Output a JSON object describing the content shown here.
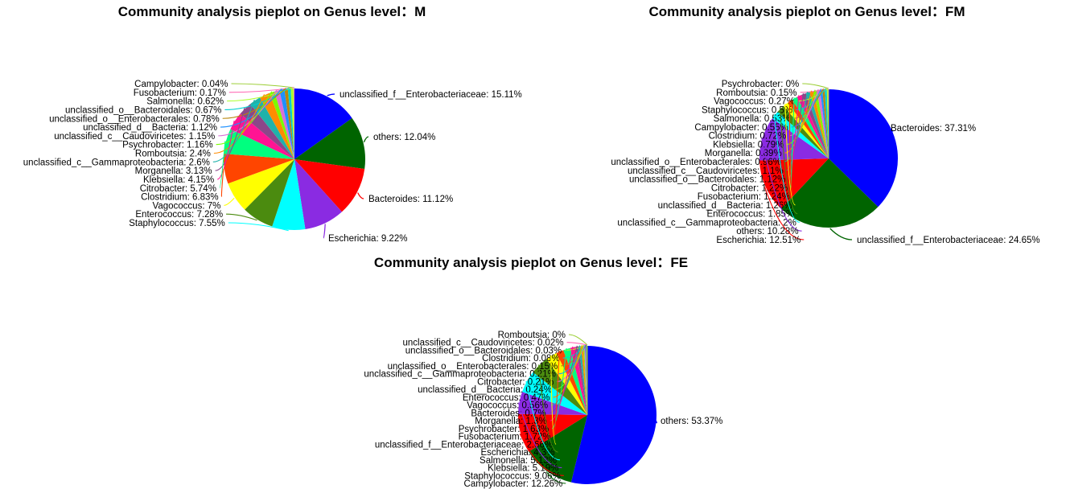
{
  "palette": [
    "#0000FF",
    "#006400",
    "#FF0000",
    "#8A2BE2",
    "#00FFFF",
    "#4B8B0F",
    "#FFFF00",
    "#FF4500",
    "#00FF7F",
    "#FF1493",
    "#8B4789",
    "#20B2AA",
    "#FF8C00",
    "#7CFC00",
    "#DA70D6",
    "#1E90FF",
    "#B8860B",
    "#00CED1",
    "#ADFF2F",
    "#FF69B4",
    "#9ACD32",
    "#40E0D0",
    "#D2691E",
    "#BA55D3"
  ],
  "chart_data": [
    {
      "type": "pie",
      "title": "Community analysis pieplot on Genus level：M",
      "slices": [
        {
          "label": "unclassified_f__Enterobacteriaceae",
          "value": 15.11,
          "text": "unclassified_f__Enterobacteriaceae: 15.11%"
        },
        {
          "label": "others",
          "value": 12.04,
          "text": "others: 12.04%"
        },
        {
          "label": "Bacteroides",
          "value": 11.12,
          "text": "Bacteroides: 11.12%"
        },
        {
          "label": "Escherichia",
          "value": 9.22,
          "text": "Escherichia: 9.22%"
        },
        {
          "label": "Staphylococcus",
          "value": 7.55,
          "text": "Staphylococcus: 7.55%"
        },
        {
          "label": "Enterococcus",
          "value": 7.28,
          "text": "Enterococcus: 7.28%"
        },
        {
          "label": "Vagococcus",
          "value": 7,
          "text": "Vagococcus: 7%"
        },
        {
          "label": "Clostridium",
          "value": 6.83,
          "text": "Clostridium: 6.83%"
        },
        {
          "label": "Citrobacter",
          "value": 5.74,
          "text": "Citrobacter: 5.74%"
        },
        {
          "label": "Klebsiella",
          "value": 4.15,
          "text": "Klebsiella: 4.15%"
        },
        {
          "label": "Morganella",
          "value": 3.13,
          "text": "Morganella: 3.13%"
        },
        {
          "label": "unclassified_c__Gammaproteobacteria",
          "value": 2.6,
          "text": "unclassified_c__Gammaproteobacteria: 2.6%"
        },
        {
          "label": "Romboutsia",
          "value": 2.4,
          "text": "Romboutsia: 2.4%"
        },
        {
          "label": "Psychrobacter",
          "value": 1.16,
          "text": "Psychrobacter: 1.16%"
        },
        {
          "label": "unclassified_c__Caudoviricetes",
          "value": 1.15,
          "text": "unclassified_c__Caudoviricetes: 1.15%"
        },
        {
          "label": "unclassified_d__Bacteria",
          "value": 1.12,
          "text": "unclassified_d__Bacteria: 1.12%"
        },
        {
          "label": "unclassified_o__Enterobacterales",
          "value": 0.78,
          "text": "unclassified_o__Enterobacterales: 0.78%"
        },
        {
          "label": "unclassified_o__Bacteroidales",
          "value": 0.67,
          "text": "unclassified_o__Bacteroidales: 0.67%"
        },
        {
          "label": "Salmonella",
          "value": 0.62,
          "text": "Salmonella: 0.62%"
        },
        {
          "label": "Fusobacterium",
          "value": 0.17,
          "text": "Fusobacterium: 0.17%"
        },
        {
          "label": "Campylobacter",
          "value": 0.04,
          "text": "Campylobacter: 0.04%"
        }
      ]
    },
    {
      "type": "pie",
      "title": "Community analysis pieplot on Genus level：FM",
      "slices": [
        {
          "label": "Bacteroides",
          "value": 37.31,
          "text": "Bacteroides: 37.31%"
        },
        {
          "label": "unclassified_f__Enterobacteriaceae",
          "value": 24.65,
          "text": "unclassified_f__Enterobacteriaceae: 24.65%"
        },
        {
          "label": "Escherichia",
          "value": 12.51,
          "text": "Escherichia: 12.51%"
        },
        {
          "label": "others",
          "value": 10.28,
          "text": "others: 10.28%"
        },
        {
          "label": "unclassified_c__Gammaproteobacteria",
          "value": 2,
          "text": "unclassified_c__Gammaproteobacteria: 2%"
        },
        {
          "label": "Enterococcus",
          "value": 1.85,
          "text": "Enterococcus: 1.85%"
        },
        {
          "label": "unclassified_d__Bacteria",
          "value": 1.26,
          "text": "unclassified_d__Bacteria: 1.26%"
        },
        {
          "label": "Fusobacterium",
          "value": 1.24,
          "text": "Fusobacterium: 1.24%"
        },
        {
          "label": "Citrobacter",
          "value": 1.22,
          "text": "Citrobacter: 1.22%"
        },
        {
          "label": "unclassified_o__Bacteroidales",
          "value": 1.12,
          "text": "unclassified_o__Bacteroidales: 1.12%"
        },
        {
          "label": "unclassified_c__Caudoviricetes",
          "value": 1.1,
          "text": "unclassified_c__Caudoviricetes: 1.1%"
        },
        {
          "label": "unclassified_o__Enterobacterales",
          "value": 0.96,
          "text": "unclassified_o__Enterobacterales: 0.96%"
        },
        {
          "label": "Morganella",
          "value": 0.89,
          "text": "Morganella: 0.89%"
        },
        {
          "label": "Klebsiella",
          "value": 0.79,
          "text": "Klebsiella: 0.79%"
        },
        {
          "label": "Clostridium",
          "value": 0.72,
          "text": "Clostridium: 0.72%"
        },
        {
          "label": "Campylobacter",
          "value": 0.55,
          "text": "Campylobacter: 0.55%"
        },
        {
          "label": "Salmonella",
          "value": 0.53,
          "text": "Salmonella: 0.53%"
        },
        {
          "label": "Staphylococcus",
          "value": 0.5,
          "text": "Staphylococcus: 0.5%"
        },
        {
          "label": "Vagococcus",
          "value": 0.27,
          "text": "Vagococcus: 0.27%"
        },
        {
          "label": "Romboutsia",
          "value": 0.15,
          "text": "Romboutsia: 0.15%"
        },
        {
          "label": "Psychrobacter",
          "value": 0,
          "text": "Psychrobacter: 0%"
        }
      ]
    },
    {
      "type": "pie",
      "title": "Community analysis pieplot on Genus level：FE",
      "slices": [
        {
          "label": "others",
          "value": 53.37,
          "text": "others: 53.37%"
        },
        {
          "label": "Campylobacter",
          "value": 12.26,
          "text": "Campylobacter: 12.26%"
        },
        {
          "label": "Staphylococcus",
          "value": 9.06,
          "text": "Staphylococcus: 9.06%"
        },
        {
          "label": "Klebsiella",
          "value": 5.19,
          "text": "Klebsiella: 5.19%"
        },
        {
          "label": "Salmonella",
          "value": 5.13,
          "text": "Salmonella: 5.13%"
        },
        {
          "label": "Escherichia",
          "value": 4.3,
          "text": "Escherichia: 4.3%"
        },
        {
          "label": "unclassified_f__Enterobacteriaceae",
          "value": 2.66,
          "text": "unclassified_f__Enterobacteriaceae: 2.66%"
        },
        {
          "label": "Fusobacterium",
          "value": 1.72,
          "text": "Fusobacterium: 1.72%"
        },
        {
          "label": "Psychrobacter",
          "value": 1.63,
          "text": "Psychrobacter: 1.63%"
        },
        {
          "label": "Morganella",
          "value": 1.3,
          "text": "Morganella: 1.3%"
        },
        {
          "label": "Bacteroides",
          "value": 0.7,
          "text": "Bacteroides: 0.7%"
        },
        {
          "label": "Vagococcus",
          "value": 0.56,
          "text": "Vagococcus: 0.56%"
        },
        {
          "label": "Enterococcus",
          "value": 0.47,
          "text": "Enterococcus: 0.47%"
        },
        {
          "label": "unclassified_d__Bacteria",
          "value": 0.24,
          "text": "unclassified_d__Bacteria: 0.24%"
        },
        {
          "label": "Citrobacter",
          "value": 0.21,
          "text": "Citrobacter: 0.21%"
        },
        {
          "label": "unclassified_c__Gammaproteobacteria",
          "value": 0.21,
          "text": "unclassified_c__Gammaproteobacteria: 0.21%"
        },
        {
          "label": "unclassified_o__Enterobacterales",
          "value": 0.15,
          "text": "unclassified_o__Enterobacterales: 0.15%"
        },
        {
          "label": "Clostridium",
          "value": 0.08,
          "text": "Clostridium: 0.08%"
        },
        {
          "label": "unclassified_o__Bacteroidales",
          "value": 0.03,
          "text": "unclassified_o__Bacteroidales: 0.03%"
        },
        {
          "label": "unclassified_c__Caudoviricetes",
          "value": 0.02,
          "text": "unclassified_c__Caudoviricetes: 0.02%"
        },
        {
          "label": "Romboutsia",
          "value": 0,
          "text": "Romboutsia: 0%"
        }
      ]
    }
  ]
}
